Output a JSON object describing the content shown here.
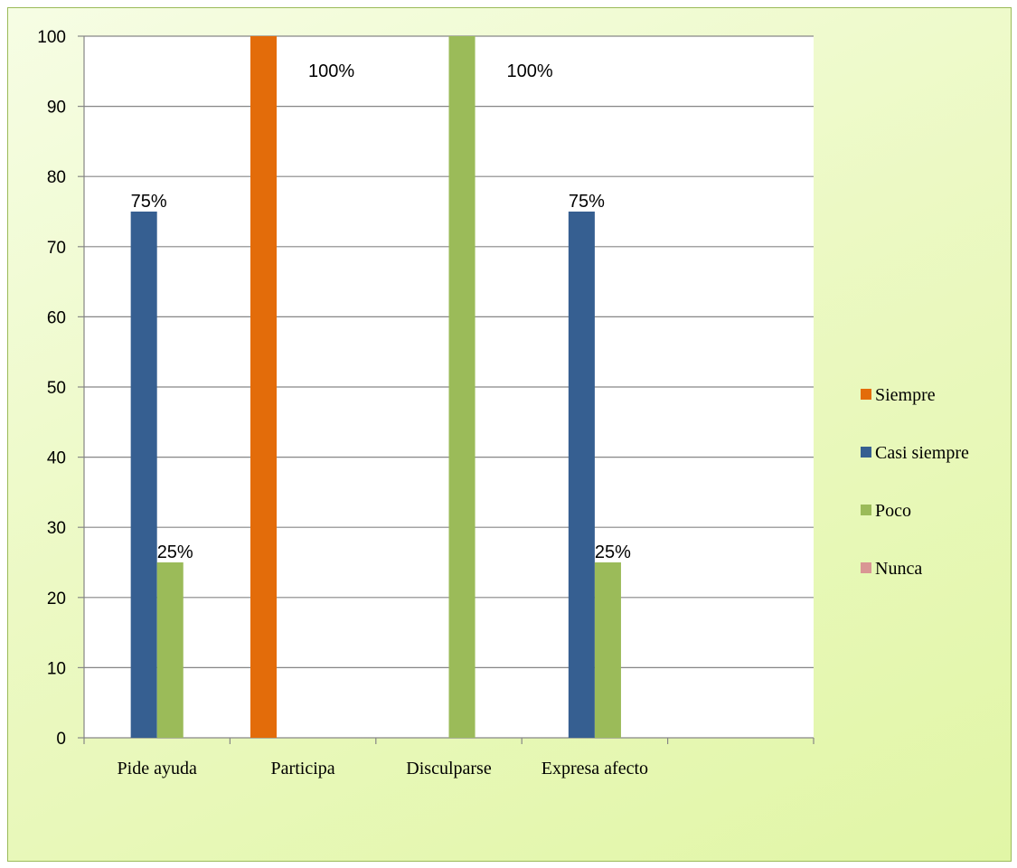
{
  "chart_data": {
    "type": "bar",
    "title": "",
    "xlabel": "",
    "ylabel": "",
    "ylim": [
      0,
      100
    ],
    "yticks": [
      0,
      10,
      20,
      30,
      40,
      50,
      60,
      70,
      80,
      90,
      100
    ],
    "categories": [
      "Pide ayuda",
      "Participa",
      "Disculparse",
      "Expresa afecto",
      ""
    ],
    "series": [
      {
        "name": "Siempre",
        "color": "#e36c0a",
        "values": [
          0,
          100,
          0,
          0,
          0
        ],
        "labels": [
          "",
          "100%",
          "",
          "",
          ""
        ]
      },
      {
        "name": "Casi siempre",
        "color": "#365f91",
        "values": [
          75,
          0,
          0,
          75,
          0
        ],
        "labels": [
          "75%",
          "",
          "",
          "75%",
          ""
        ]
      },
      {
        "name": "Poco",
        "color": "#9bbb59",
        "values": [
          25,
          0,
          100,
          25,
          0
        ],
        "labels": [
          "25%",
          "",
          "100%",
          "25%",
          ""
        ]
      },
      {
        "name": "Nunca",
        "color": "#d99694",
        "values": [
          0,
          0,
          0,
          0,
          0
        ],
        "labels": [
          "",
          "",
          "",
          "",
          ""
        ]
      }
    ],
    "grid": true,
    "legend_position": "right"
  }
}
